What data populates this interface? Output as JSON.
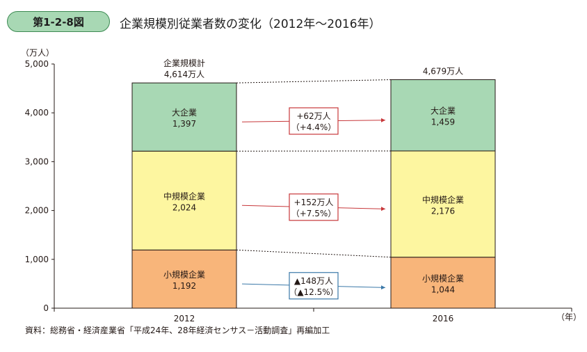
{
  "figure": {
    "label": "第1-2-8図",
    "title": "企業規模別従業者数の変化（2012年〜2016年）",
    "source": "資料：総務省・経済産業省「平成24年、28年経済センサス－活動調査」再編加工"
  },
  "colors": {
    "large": "#a8d8b4",
    "medium": "#fdf6a0",
    "small": "#f8b57a",
    "increase": "#c7373a",
    "decrease": "#3a78a8",
    "badge": "#a8d8b4"
  },
  "chart_data": {
    "type": "bar",
    "stacked": true,
    "categories": [
      "2012",
      "2016"
    ],
    "ylabel": "（万人）",
    "xlabel": "（年）",
    "ylim": [
      0,
      5000
    ],
    "yticks": [
      "0",
      "1,000",
      "2,000",
      "3,000",
      "4,000",
      "5,000"
    ],
    "series": [
      {
        "name": "小規模企業",
        "key": "small",
        "values": [
          1192,
          1044
        ],
        "labels": [
          "1,192",
          "1,044"
        ]
      },
      {
        "name": "中規模企業",
        "key": "medium",
        "values": [
          2024,
          2176
        ],
        "labels": [
          "2,024",
          "2,176"
        ]
      },
      {
        "name": "大企業",
        "key": "large",
        "values": [
          1397,
          1459
        ],
        "labels": [
          "1,397",
          "1,459"
        ]
      }
    ],
    "totals": [
      {
        "title": "企業規模計",
        "value": "4,614万人"
      },
      {
        "title": "",
        "value": "4,679万人"
      }
    ],
    "changes": [
      {
        "key": "large",
        "line1": "+62万人",
        "line2": "（+4.4%）",
        "direction": "up"
      },
      {
        "key": "medium",
        "line1": "+152万人",
        "line2": "（+7.5%）",
        "direction": "up"
      },
      {
        "key": "small",
        "line1": "▲148万人",
        "line2": "（▲12.5%）",
        "direction": "down"
      }
    ]
  }
}
